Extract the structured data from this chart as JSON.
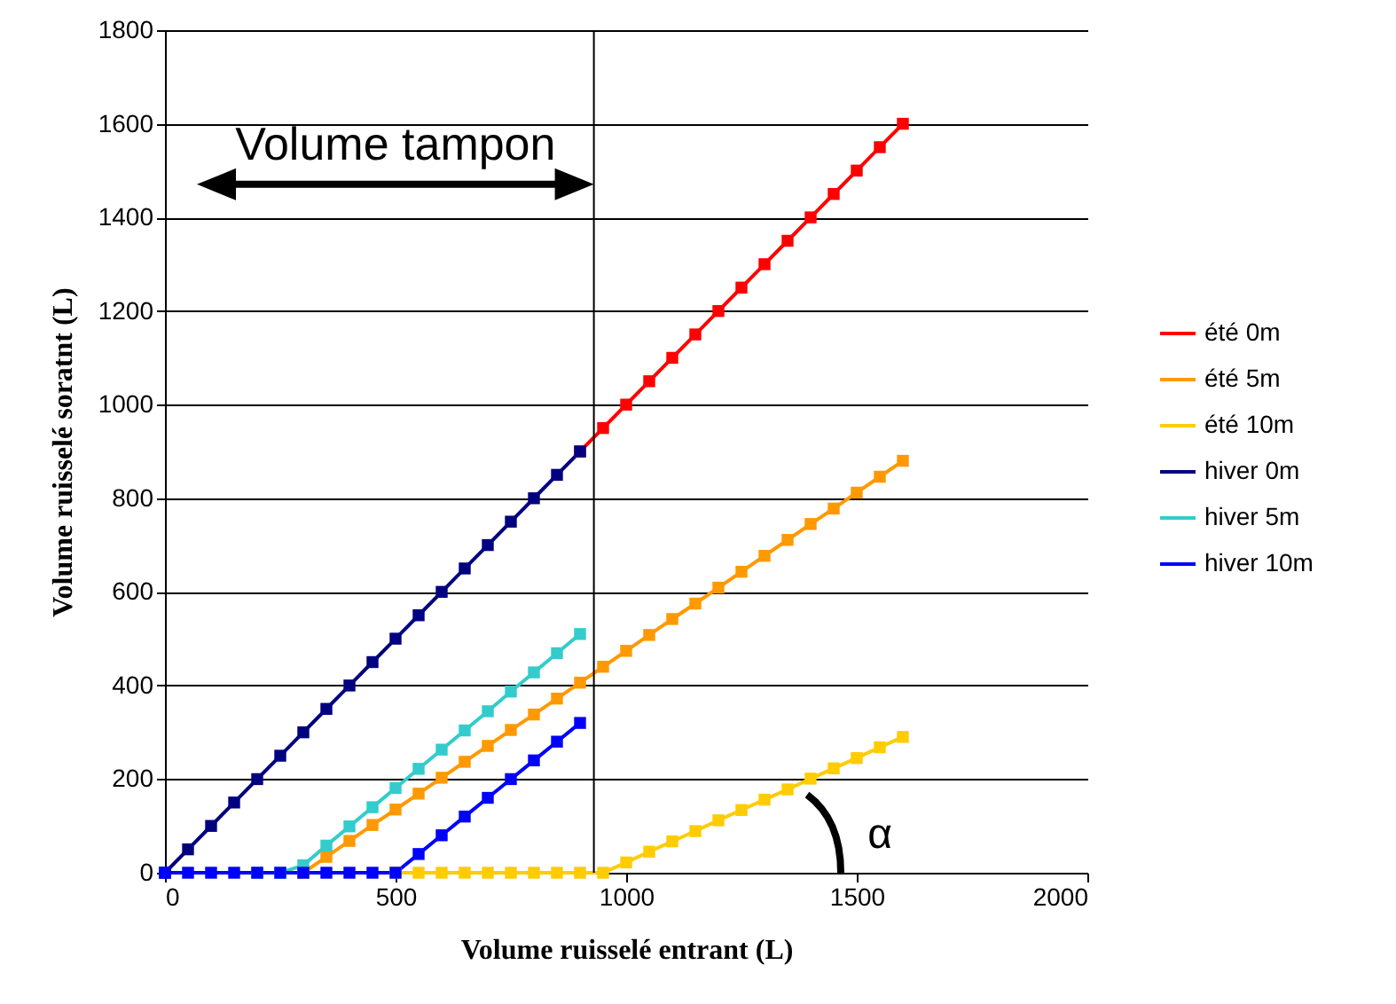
{
  "chart_data": {
    "type": "line",
    "xlabel": "Volume ruisselé entrant (L)",
    "ylabel": "Volume ruisselé soratnt (L)",
    "xlim": [
      0,
      2000
    ],
    "xticks": [
      0,
      500,
      1000,
      1500,
      2000
    ],
    "ylim": [
      0,
      1800
    ],
    "yticks": [
      0,
      200,
      400,
      600,
      800,
      1000,
      1200,
      1400,
      1600,
      1800
    ],
    "grid": "y",
    "legend": "right",
    "marker": "square",
    "line_style": "solid",
    "series": [
      {
        "name": "été 0m",
        "color": "#ff0000",
        "x": [
          900,
          950,
          1000,
          1050,
          1100,
          1150,
          1200,
          1250,
          1300,
          1350,
          1400,
          1450,
          1500,
          1550,
          1600
        ],
        "values": [
          900,
          950,
          1000,
          1050,
          1100,
          1150,
          1200,
          1250,
          1300,
          1350,
          1400,
          1450,
          1500,
          1550,
          1600
        ]
      },
      {
        "name": "été 5m",
        "color": "#ff9900",
        "x": [
          300,
          350,
          400,
          450,
          500,
          550,
          600,
          650,
          700,
          750,
          800,
          850,
          900,
          950,
          1000,
          1050,
          1100,
          1150,
          1200,
          1250,
          1300,
          1350,
          1400,
          1450,
          1500,
          1550,
          1600
        ],
        "values": [
          0,
          34,
          68,
          102,
          135,
          169,
          203,
          237,
          271,
          305,
          338,
          372,
          406,
          440,
          474,
          508,
          542,
          575,
          609,
          643,
          677,
          711,
          745,
          778,
          812,
          846,
          880
        ]
      },
      {
        "name": "été 10m",
        "color": "#ffcc00",
        "x": [
          500,
          550,
          600,
          650,
          700,
          750,
          800,
          850,
          900,
          950,
          1000,
          1050,
          1100,
          1150,
          1200,
          1250,
          1300,
          1350,
          1400,
          1450,
          1500,
          1550,
          1600
        ],
        "values": [
          0,
          0,
          0,
          0,
          0,
          0,
          0,
          0,
          0,
          0,
          22,
          45,
          67,
          89,
          112,
          134,
          156,
          178,
          201,
          223,
          245,
          268,
          290
        ]
      },
      {
        "name": "hiver 0m",
        "color": "#000080",
        "x": [
          0,
          50,
          100,
          150,
          200,
          250,
          300,
          350,
          400,
          450,
          500,
          550,
          600,
          650,
          700,
          750,
          800,
          850,
          900
        ],
        "values": [
          0,
          50,
          100,
          150,
          200,
          250,
          300,
          350,
          400,
          450,
          500,
          550,
          600,
          650,
          700,
          750,
          800,
          850,
          900
        ]
      },
      {
        "name": "hiver 5m",
        "color": "#33cccc",
        "x": [
          200,
          250,
          300,
          350,
          400,
          450,
          500,
          550,
          600,
          650,
          700,
          750,
          800,
          850,
          900
        ],
        "values": [
          0,
          0,
          16,
          58,
          99,
          140,
          181,
          222,
          263,
          304,
          345,
          387,
          428,
          469,
          510
        ]
      },
      {
        "name": "hiver 10m",
        "color": "#0000ff",
        "x": [
          0,
          50,
          100,
          150,
          200,
          250,
          300,
          350,
          400,
          450,
          500,
          550,
          600,
          650,
          700,
          750,
          800,
          850,
          900
        ],
        "values": [
          0,
          0,
          0,
          0,
          0,
          0,
          0,
          0,
          0,
          0,
          0,
          40,
          80,
          120,
          160,
          200,
          240,
          280,
          320
        ]
      }
    ],
    "ref_lines": [
      {
        "axis": "x",
        "value": 930,
        "color": "#000000"
      }
    ],
    "annotations": [
      "Volume tampon",
      "α"
    ]
  }
}
